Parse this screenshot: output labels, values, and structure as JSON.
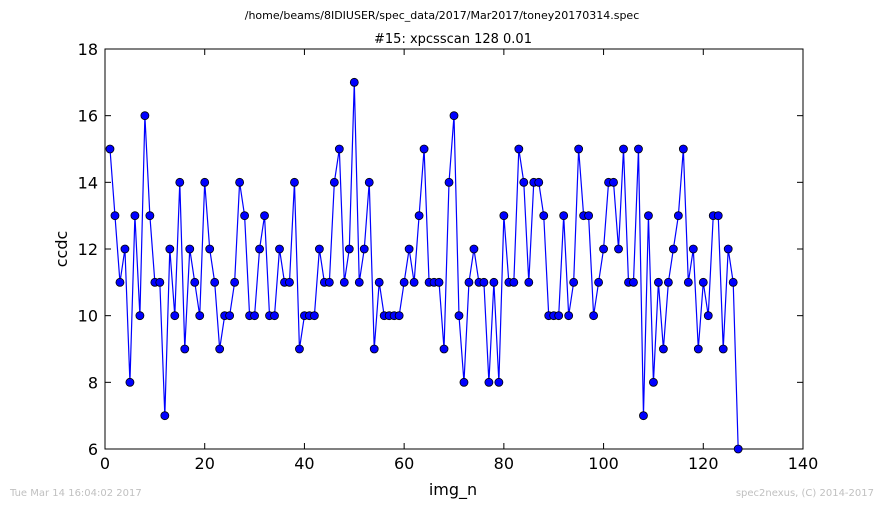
{
  "header": {
    "file_path": "/home/beams/8IDIUSER/spec_data/2017/Mar2017/toney20170314.spec"
  },
  "footer": {
    "timestamp": "Tue Mar 14 16:04:02 2017",
    "credit": "spec2nexus, (C) 2014-2017"
  },
  "chart_data": {
    "type": "line",
    "title": "#15: xpcsscan 128 0.01",
    "xlabel": "img_n",
    "ylabel": "ccdc",
    "xlim": [
      0,
      140
    ],
    "ylim": [
      6,
      18
    ],
    "xticks": [
      0,
      20,
      40,
      60,
      80,
      100,
      120,
      140
    ],
    "yticks": [
      6,
      8,
      10,
      12,
      14,
      16,
      18
    ],
    "grid": false,
    "legend": "none",
    "series": [
      {
        "color": "#0000ff",
        "marker": "circle",
        "x": [
          1,
          2,
          3,
          4,
          5,
          6,
          7,
          8,
          9,
          10,
          11,
          12,
          13,
          14,
          15,
          16,
          17,
          18,
          19,
          20,
          21,
          22,
          23,
          24,
          25,
          26,
          27,
          28,
          29,
          30,
          31,
          32,
          33,
          34,
          35,
          36,
          37,
          38,
          39,
          40,
          41,
          42,
          43,
          44,
          45,
          46,
          47,
          48,
          49,
          50,
          51,
          52,
          53,
          54,
          55,
          56,
          57,
          58,
          59,
          60,
          61,
          62,
          63,
          64,
          65,
          66,
          67,
          68,
          69,
          70,
          71,
          72,
          73,
          74,
          75,
          76,
          77,
          78,
          79,
          80,
          81,
          82,
          83,
          84,
          85,
          86,
          87,
          88,
          89,
          90,
          91,
          92,
          93,
          94,
          95,
          96,
          97,
          98,
          99,
          100,
          101,
          102,
          103,
          104,
          105,
          106,
          107,
          108,
          109,
          110,
          111,
          112,
          113,
          114,
          115,
          116,
          117,
          118,
          119,
          120,
          121,
          122,
          123,
          124,
          125,
          126,
          127
        ],
        "y": [
          15,
          13,
          11,
          12,
          8,
          13,
          10,
          16,
          13,
          11,
          11,
          7,
          12,
          10,
          14,
          9,
          12,
          11,
          10,
          14,
          12,
          11,
          9,
          10,
          10,
          11,
          14,
          13,
          10,
          10,
          12,
          13,
          10,
          10,
          12,
          11,
          11,
          14,
          9,
          10,
          10,
          10,
          12,
          11,
          11,
          14,
          15,
          11,
          12,
          17,
          11,
          12,
          14,
          9,
          11,
          10,
          10,
          10,
          10,
          11,
          12,
          11,
          13,
          15,
          11,
          11,
          11,
          9,
          14,
          16,
          10,
          8,
          11,
          12,
          11,
          11,
          8,
          11,
          8,
          13,
          11,
          11,
          15,
          14,
          11,
          14,
          14,
          13,
          10,
          10,
          10,
          13,
          10,
          11,
          15,
          13,
          13,
          10,
          11,
          12,
          14,
          14,
          12,
          15,
          11,
          11,
          15,
          7,
          13,
          8,
          11,
          9,
          11,
          12,
          13,
          15,
          11,
          12,
          9,
          11,
          10,
          13,
          13,
          9,
          12,
          11,
          6
        ]
      }
    ]
  }
}
